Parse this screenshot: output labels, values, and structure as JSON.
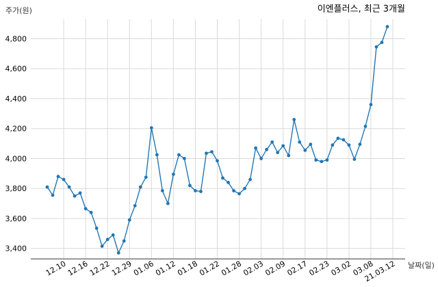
{
  "chart_data": {
    "type": "line",
    "title": "이엔플러스, 최근 3개월",
    "ylabel": "주가(원)",
    "xlabel": "날짜(일)",
    "ylim": [
      3330,
      4930
    ],
    "yticks": [
      3400,
      3600,
      3800,
      4000,
      4200,
      4400,
      4600,
      4800
    ],
    "ytick_labels": [
      "3,400",
      "3,600",
      "3,800",
      "4,000",
      "4,200",
      "4,400",
      "4,600",
      "4,800"
    ],
    "xtick_labels": [
      "12.10",
      "12.16",
      "12.22",
      "12.29",
      "01.06",
      "01.12",
      "01.18",
      "01.22",
      "01.28",
      "02.03",
      "02.09",
      "02.17",
      "02.23",
      "03.02",
      "03.08",
      "21.03.12"
    ],
    "xtick_indices": [
      3,
      7,
      11,
      15,
      19,
      23,
      27,
      31,
      35,
      39,
      43,
      47,
      51,
      55,
      59,
      63
    ],
    "grid": true,
    "color": "#1f77b4",
    "series": [
      {
        "values": [
          3810,
          3755,
          3880,
          3860,
          3810,
          3750,
          3770,
          3665,
          3640,
          3535,
          3415,
          3460,
          3490,
          3370,
          3450,
          3590,
          3685,
          3810,
          3875,
          4205,
          4025,
          3785,
          3700,
          3895,
          4025,
          4000,
          3820,
          3785,
          3780,
          4035,
          4045,
          3985,
          3870,
          3840,
          3785,
          3765,
          3800,
          3860,
          4070,
          4000,
          4060,
          4110,
          4040,
          4085,
          4020,
          4260,
          4110,
          4055,
          4095,
          3990,
          3980,
          3990,
          4090,
          4135,
          4125,
          4090,
          3995,
          4095,
          4215,
          4360,
          4745,
          4775,
          4880
        ]
      }
    ]
  }
}
